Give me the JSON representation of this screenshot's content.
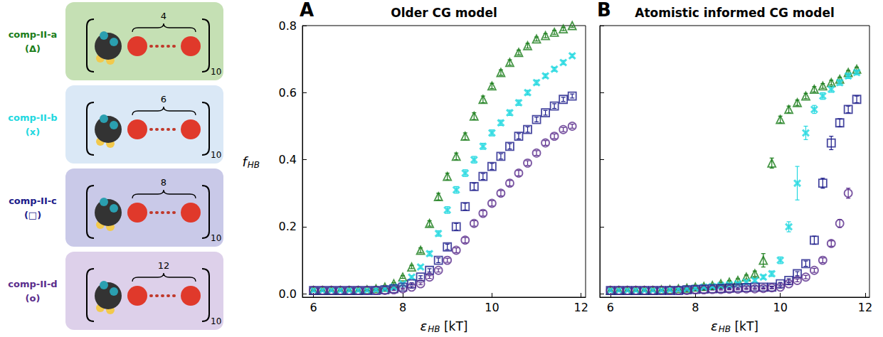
{
  "legend_panel": [
    {
      "label": "comp-II-a",
      "symbol": "(Δ)",
      "count": 4,
      "repeat": 10,
      "color": "#1a7d1a"
    },
    {
      "label": "comp-II-b",
      "symbol": "(x)",
      "count": 6,
      "repeat": 10,
      "color": "#22d8e0"
    },
    {
      "label": "comp-II-c",
      "symbol": "(□)",
      "count": 8,
      "repeat": 10,
      "color": "#1c1c8a"
    },
    {
      "label": "comp-II-d",
      "symbol": "(o)",
      "count": 12,
      "repeat": 10,
      "color": "#5a2d8c"
    }
  ],
  "chart_data": [
    {
      "type": "scatter",
      "panel": "A",
      "title": "Older CG model",
      "xlabel": {
        "text": "ε",
        "subscript": "HB",
        "suffix": " [kT]"
      },
      "ylabel": {
        "text": "f",
        "subscript": "HB"
      },
      "xlim": [
        5.75,
        12.1
      ],
      "xticks": [
        6,
        8,
        10,
        12
      ],
      "ylim": [
        -0.01,
        0.8
      ],
      "yticks": [
        {
          "value": 0,
          "label": "0.0"
        },
        0.2,
        0.4,
        0.6,
        0.8
      ],
      "grid": false,
      "x": [
        6,
        6.2,
        6.4,
        6.6,
        6.8,
        7,
        7.2,
        7.4,
        7.6,
        7.8,
        8,
        8.2,
        8.4,
        8.6,
        8.8,
        9,
        9.2,
        9.4,
        9.6,
        9.8,
        10,
        10.2,
        10.4,
        10.6,
        10.8,
        11,
        11.2,
        11.4,
        11.6,
        11.8
      ],
      "series": [
        {
          "name": "comp-II-a",
          "color": "#1a7d1a",
          "marker": "triangle",
          "values": [
            0.01,
            0.01,
            0.01,
            0.01,
            0.01,
            0.01,
            0.012,
            0.015,
            0.02,
            0.03,
            0.05,
            0.08,
            0.13,
            0.21,
            0.29,
            0.35,
            0.41,
            0.47,
            0.53,
            0.58,
            0.62,
            0.66,
            0.69,
            0.72,
            0.74,
            0.76,
            0.77,
            0.78,
            0.79,
            0.8
          ],
          "errors": [
            0.002,
            0.002,
            0.002,
            0.002,
            0.002,
            0.002,
            0.002,
            0.002,
            0.003,
            0.003,
            0.004,
            0.005,
            0.007,
            0.008,
            0.01,
            0.01,
            0.01,
            0.01,
            0.01,
            0.01,
            0.008,
            0.008,
            0.008,
            0.007,
            0.007,
            0.006,
            0.006,
            0.006,
            0.005,
            0.005
          ]
        },
        {
          "name": "comp-II-b",
          "color": "#22d8e0",
          "marker": "x",
          "values": [
            0.01,
            0.01,
            0.01,
            0.01,
            0.01,
            0.01,
            0.01,
            0.012,
            0.015,
            0.02,
            0.03,
            0.05,
            0.08,
            0.12,
            0.18,
            0.25,
            0.31,
            0.36,
            0.4,
            0.44,
            0.48,
            0.51,
            0.54,
            0.57,
            0.6,
            0.63,
            0.65,
            0.67,
            0.69,
            0.71
          ],
          "errors": [
            0.002,
            0.002,
            0.002,
            0.002,
            0.002,
            0.002,
            0.002,
            0.002,
            0.002,
            0.003,
            0.003,
            0.004,
            0.005,
            0.007,
            0.008,
            0.01,
            0.01,
            0.01,
            0.01,
            0.009,
            0.009,
            0.008,
            0.008,
            0.008,
            0.007,
            0.007,
            0.006,
            0.006,
            0.006,
            0.005
          ]
        },
        {
          "name": "comp-II-c",
          "color": "#1c1c8a",
          "marker": "square",
          "values": [
            0.01,
            0.01,
            0.01,
            0.01,
            0.01,
            0.01,
            0.01,
            0.01,
            0.012,
            0.015,
            0.02,
            0.03,
            0.05,
            0.07,
            0.1,
            0.14,
            0.2,
            0.26,
            0.32,
            0.35,
            0.38,
            0.41,
            0.44,
            0.47,
            0.49,
            0.52,
            0.54,
            0.56,
            0.58,
            0.59
          ],
          "errors": [
            0.002,
            0.002,
            0.002,
            0.002,
            0.002,
            0.002,
            0.002,
            0.002,
            0.002,
            0.002,
            0.003,
            0.003,
            0.004,
            0.005,
            0.007,
            0.008,
            0.01,
            0.01,
            0.01,
            0.009,
            0.009,
            0.008,
            0.008,
            0.008,
            0.008,
            0.007,
            0.007,
            0.007,
            0.006,
            0.006
          ]
        },
        {
          "name": "comp-II-d",
          "color": "#5a2d8c",
          "marker": "circle",
          "values": [
            0.01,
            0.01,
            0.01,
            0.01,
            0.01,
            0.01,
            0.01,
            0.01,
            0.01,
            0.012,
            0.015,
            0.02,
            0.03,
            0.05,
            0.07,
            0.1,
            0.13,
            0.16,
            0.21,
            0.24,
            0.27,
            0.3,
            0.33,
            0.36,
            0.39,
            0.42,
            0.45,
            0.47,
            0.49,
            0.5
          ],
          "errors": [
            0.002,
            0.002,
            0.002,
            0.002,
            0.002,
            0.002,
            0.002,
            0.002,
            0.002,
            0.002,
            0.002,
            0.003,
            0.003,
            0.004,
            0.005,
            0.006,
            0.007,
            0.008,
            0.008,
            0.008,
            0.008,
            0.008,
            0.008,
            0.008,
            0.007,
            0.007,
            0.007,
            0.007,
            0.006,
            0.006
          ]
        }
      ]
    },
    {
      "type": "scatter",
      "panel": "B",
      "title": "Atomistic informed CG model",
      "xlabel": {
        "text": "ε",
        "subscript": "HB",
        "suffix": " [kT]"
      },
      "xlim": [
        5.75,
        12.1
      ],
      "xticks": [
        6,
        8,
        10,
        12
      ],
      "ylim": [
        -0.01,
        0.8
      ],
      "yticks": [
        {
          "value": 0,
          "label": "0.0"
        },
        0.2,
        0.4,
        0.6,
        0.8
      ],
      "tick_labels": "x",
      "grid": false,
      "x": [
        6,
        6.2,
        6.4,
        6.6,
        6.8,
        7,
        7.2,
        7.4,
        7.6,
        7.8,
        8,
        8.2,
        8.4,
        8.6,
        8.8,
        9,
        9.2,
        9.4,
        9.6,
        9.8,
        10,
        10.2,
        10.4,
        10.6,
        10.8,
        11,
        11.2,
        11.4,
        11.6,
        11.8
      ],
      "series": [
        {
          "name": "comp-II-a",
          "color": "#1a7d1a",
          "marker": "triangle",
          "values": [
            0.01,
            0.01,
            0.01,
            0.01,
            0.01,
            0.01,
            0.012,
            0.013,
            0.015,
            0.017,
            0.02,
            0.022,
            0.025,
            0.03,
            0.035,
            0.04,
            0.05,
            0.06,
            0.1,
            0.39,
            0.52,
            0.55,
            0.57,
            0.59,
            0.61,
            0.62,
            0.63,
            0.64,
            0.66,
            0.67
          ],
          "errors": [
            0.002,
            0.002,
            0.002,
            0.002,
            0.002,
            0.002,
            0.002,
            0.002,
            0.002,
            0.002,
            0.003,
            0.003,
            0.003,
            0.004,
            0.004,
            0.005,
            0.006,
            0.008,
            0.02,
            0.015,
            0.01,
            0.01,
            0.008,
            0.008,
            0.008,
            0.007,
            0.007,
            0.006,
            0.006,
            0.006
          ]
        },
        {
          "name": "comp-II-b",
          "color": "#22d8e0",
          "marker": "x",
          "values": [
            0.01,
            0.01,
            0.01,
            0.01,
            0.01,
            0.01,
            0.01,
            0.012,
            0.013,
            0.015,
            0.017,
            0.02,
            0.022,
            0.025,
            0.027,
            0.03,
            0.035,
            0.04,
            0.05,
            0.06,
            0.1,
            0.2,
            0.33,
            0.48,
            0.55,
            0.59,
            0.61,
            0.63,
            0.65,
            0.66
          ],
          "errors": [
            0.002,
            0.002,
            0.002,
            0.002,
            0.002,
            0.002,
            0.002,
            0.002,
            0.002,
            0.002,
            0.002,
            0.003,
            0.003,
            0.003,
            0.003,
            0.004,
            0.004,
            0.005,
            0.006,
            0.008,
            0.01,
            0.015,
            0.05,
            0.02,
            0.012,
            0.01,
            0.009,
            0.008,
            0.008,
            0.007
          ]
        },
        {
          "name": "comp-II-c",
          "color": "#1c1c8a",
          "marker": "square",
          "values": [
            0.01,
            0.01,
            0.01,
            0.01,
            0.01,
            0.01,
            0.01,
            0.01,
            0.01,
            0.012,
            0.013,
            0.014,
            0.015,
            0.016,
            0.017,
            0.018,
            0.019,
            0.02,
            0.02,
            0.02,
            0.03,
            0.04,
            0.06,
            0.09,
            0.16,
            0.33,
            0.45,
            0.51,
            0.55,
            0.58
          ],
          "errors": [
            0.002,
            0.002,
            0.002,
            0.002,
            0.002,
            0.002,
            0.002,
            0.002,
            0.002,
            0.002,
            0.002,
            0.002,
            0.002,
            0.002,
            0.002,
            0.002,
            0.003,
            0.003,
            0.003,
            0.003,
            0.004,
            0.005,
            0.006,
            0.008,
            0.012,
            0.015,
            0.02,
            0.012,
            0.01,
            0.01
          ]
        },
        {
          "name": "comp-II-d",
          "color": "#5a2d8c",
          "marker": "circle",
          "values": [
            0.01,
            0.01,
            0.01,
            0.01,
            0.01,
            0.01,
            0.01,
            0.01,
            0.01,
            0.01,
            0.012,
            0.012,
            0.013,
            0.013,
            0.014,
            0.014,
            0.015,
            0.015,
            0.016,
            0.018,
            0.02,
            0.03,
            0.04,
            0.05,
            0.07,
            0.1,
            0.15,
            0.21,
            0.3,
            null
          ],
          "errors": [
            0.002,
            0.002,
            0.002,
            0.002,
            0.002,
            0.002,
            0.002,
            0.002,
            0.002,
            0.002,
            0.002,
            0.002,
            0.002,
            0.002,
            0.002,
            0.002,
            0.002,
            0.002,
            0.002,
            0.003,
            0.003,
            0.003,
            0.004,
            0.005,
            0.006,
            0.007,
            0.008,
            0.012,
            0.015,
            null
          ]
        }
      ]
    }
  ]
}
